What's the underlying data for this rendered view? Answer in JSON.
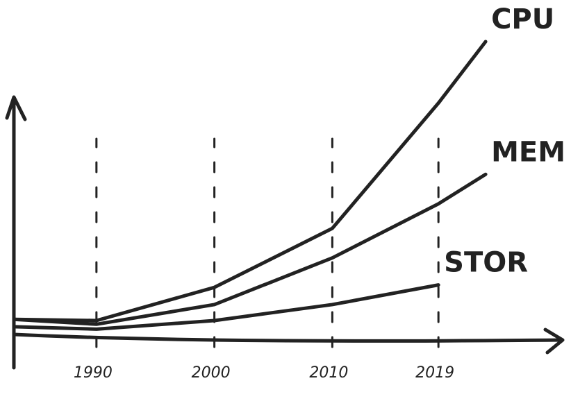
{
  "chart_data": {
    "type": "line",
    "x": [
      1983,
      1990,
      2000,
      2010,
      2019,
      2023
    ],
    "series": [
      {
        "name": "CPU",
        "color": "#222222",
        "values": [
          7,
          6.5,
          20,
          44,
          95,
          120
        ]
      },
      {
        "name": "MEM",
        "color": "#222222",
        "values": [
          7,
          5,
          13,
          32,
          54,
          66
        ]
      },
      {
        "name": "STOR",
        "color": "#222222",
        "values": [
          4,
          3,
          6.5,
          13,
          21,
          null
        ]
      }
    ],
    "xlim": [
      1983,
      2026
    ],
    "xticks": [
      1990,
      2000,
      2010,
      2019
    ],
    "ylim": [
      0,
      120
    ],
    "grid": true
  }
}
